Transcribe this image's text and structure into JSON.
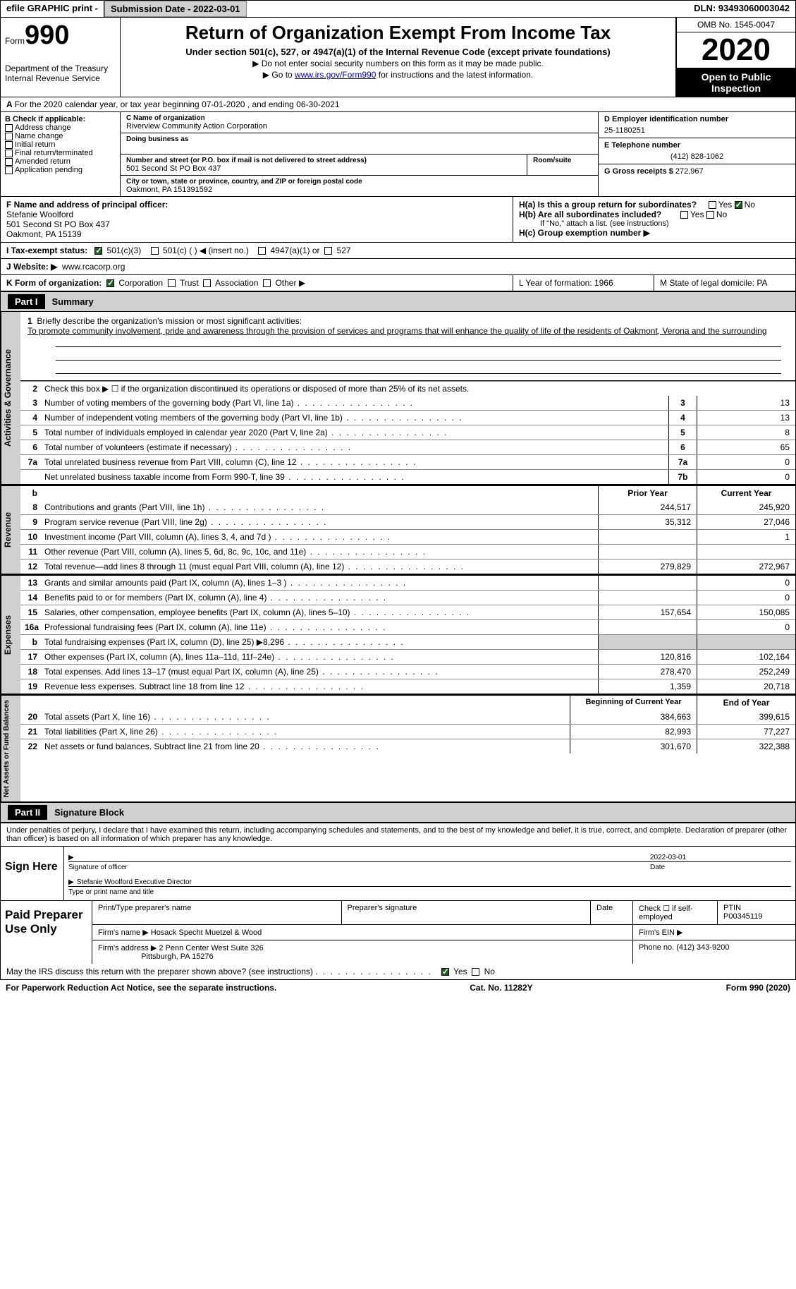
{
  "topbar": {
    "efile": "efile GRAPHIC print -",
    "submission": "Submission Date - 2022-03-01",
    "dln": "DLN: 93493060003042"
  },
  "header": {
    "form_prefix": "Form",
    "form_num": "990",
    "dept": "Department of the Treasury",
    "irs": "Internal Revenue Service",
    "title": "Return of Organization Exempt From Income Tax",
    "subtitle": "Under section 501(c), 527, or 4947(a)(1) of the Internal Revenue Code (except private foundations)",
    "note1": "▶ Do not enter social security numbers on this form as it may be made public.",
    "note2_pre": "▶ Go to ",
    "note2_link": "www.irs.gov/Form990",
    "note2_post": " for instructions and the latest information.",
    "omb": "OMB No. 1545-0047",
    "year": "2020",
    "inspect": "Open to Public Inspection"
  },
  "row_a": "For the 2020 calendar year, or tax year beginning 07-01-2020    , and ending 06-30-2021",
  "section_b": {
    "hdr": "B Check if applicable:",
    "items": [
      "Address change",
      "Name change",
      "Initial return",
      "Final return/terminated",
      "Amended return",
      "Application pending"
    ]
  },
  "section_c": {
    "name_lbl": "C Name of organization",
    "name": "Riverview Community Action Corporation",
    "dba_lbl": "Doing business as",
    "addr_lbl": "Number and street (or P.O. box if mail is not delivered to street address)",
    "room_lbl": "Room/suite",
    "addr": "501 Second St PO Box 437",
    "city_lbl": "City or town, state or province, country, and ZIP or foreign postal code",
    "city": "Oakmont, PA  151391592"
  },
  "section_de": {
    "ein_lbl": "D Employer identification number",
    "ein": "25-1180251",
    "tel_lbl": "E Telephone number",
    "tel": "(412) 828-1062",
    "gross_lbl": "G Gross receipts $ ",
    "gross": "272,967"
  },
  "section_f": {
    "lbl": "F Name and address of principal officer:",
    "name": "Stefanie Woolford",
    "addr1": "501 Second St PO Box 437",
    "addr2": "Oakmont, PA  15139"
  },
  "section_h": {
    "ha": "H(a)  Is this a group return for subordinates?",
    "hb": "H(b)  Are all subordinates included?",
    "hb_note": "If \"No,\" attach a list. (see instructions)",
    "hc": "H(c)  Group exemption number ▶"
  },
  "row_i": {
    "lbl": "I     Tax-exempt status:",
    "o1": "501(c)(3)",
    "o2": "501(c) (  ) ◀ (insert no.)",
    "o3": "4947(a)(1) or",
    "o4": "527"
  },
  "row_j": {
    "lbl": "J    Website: ▶",
    "val": "www.rcacorp.org"
  },
  "row_k": {
    "lbl": "K Form of organization:",
    "o1": "Corporation",
    "o2": "Trust",
    "o3": "Association",
    "o4": "Other ▶",
    "l": "L Year of formation: 1966",
    "m": "M State of legal domicile: PA"
  },
  "part1": {
    "hdr": "Part I",
    "title": "Summary",
    "q1_lbl": "1",
    "q1": "Briefly describe the organization's mission or most significant activities:",
    "q1_text": "To promote community involvement, pride and awareness through the provision of services and programs that will enhance the quality of life of the residents of Oakmont, Verona and the surrounding",
    "q2_lbl": "2",
    "q2": "Check this box ▶ ☐  if the organization discontinued its operations or disposed of more than 25% of its net assets.",
    "vert1": "Activities & Governance",
    "vert2": "Revenue",
    "vert3": "Expenses",
    "vert4": "Net Assets or Fund Balances",
    "prior_hdr": "Prior Year",
    "current_hdr": "Current Year",
    "begin_hdr": "Beginning of Current Year",
    "end_hdr": "End of Year",
    "rows_gov": [
      {
        "n": "3",
        "t": "Number of voting members of the governing body (Part VI, line 1a)",
        "b": "3",
        "v": "13"
      },
      {
        "n": "4",
        "t": "Number of independent voting members of the governing body (Part VI, line 1b)",
        "b": "4",
        "v": "13"
      },
      {
        "n": "5",
        "t": "Total number of individuals employed in calendar year 2020 (Part V, line 2a)",
        "b": "5",
        "v": "8"
      },
      {
        "n": "6",
        "t": "Total number of volunteers (estimate if necessary)",
        "b": "6",
        "v": "65"
      },
      {
        "n": "7a",
        "t": "Total unrelated business revenue from Part VIII, column (C), line 12",
        "b": "7a",
        "v": "0"
      },
      {
        "n": "",
        "t": "Net unrelated business taxable income from Form 990-T, line 39",
        "b": "7b",
        "v": "0"
      }
    ],
    "rows_rev": [
      {
        "n": "8",
        "t": "Contributions and grants (Part VIII, line 1h)",
        "p": "244,517",
        "c": "245,920"
      },
      {
        "n": "9",
        "t": "Program service revenue (Part VIII, line 2g)",
        "p": "35,312",
        "c": "27,046"
      },
      {
        "n": "10",
        "t": "Investment income (Part VIII, column (A), lines 3, 4, and 7d )",
        "p": "",
        "c": "1"
      },
      {
        "n": "11",
        "t": "Other revenue (Part VIII, column (A), lines 5, 6d, 8c, 9c, 10c, and 11e)",
        "p": "",
        "c": ""
      },
      {
        "n": "12",
        "t": "Total revenue—add lines 8 through 11 (must equal Part VIII, column (A), line 12)",
        "p": "279,829",
        "c": "272,967"
      }
    ],
    "rows_exp": [
      {
        "n": "13",
        "t": "Grants and similar amounts paid (Part IX, column (A), lines 1–3 )",
        "p": "",
        "c": "0"
      },
      {
        "n": "14",
        "t": "Benefits paid to or for members (Part IX, column (A), line 4)",
        "p": "",
        "c": "0"
      },
      {
        "n": "15",
        "t": "Salaries, other compensation, employee benefits (Part IX, column (A), lines 5–10)",
        "p": "157,654",
        "c": "150,085"
      },
      {
        "n": "16a",
        "t": "Professional fundraising fees (Part IX, column (A), line 11e)",
        "p": "",
        "c": "0"
      },
      {
        "n": "b",
        "t": "Total fundraising expenses (Part IX, column (D), line 25) ▶8,296",
        "p": "shade",
        "c": "shade"
      },
      {
        "n": "17",
        "t": "Other expenses (Part IX, column (A), lines 11a–11d, 11f–24e)",
        "p": "120,816",
        "c": "102,164"
      },
      {
        "n": "18",
        "t": "Total expenses. Add lines 13–17 (must equal Part IX, column (A), line 25)",
        "p": "278,470",
        "c": "252,249"
      },
      {
        "n": "19",
        "t": "Revenue less expenses. Subtract line 18 from line 12",
        "p": "1,359",
        "c": "20,718"
      }
    ],
    "rows_net": [
      {
        "n": "20",
        "t": "Total assets (Part X, line 16)",
        "p": "384,663",
        "c": "399,615"
      },
      {
        "n": "21",
        "t": "Total liabilities (Part X, line 26)",
        "p": "82,993",
        "c": "77,227"
      },
      {
        "n": "22",
        "t": "Net assets or fund balances. Subtract line 21 from line 20",
        "p": "301,670",
        "c": "322,388"
      }
    ]
  },
  "part2": {
    "hdr": "Part II",
    "title": "Signature Block",
    "penalty": "Under penalties of perjury, I declare that I have examined this return, including accompanying schedules and statements, and to the best of my knowledge and belief, it is true, correct, and complete. Declaration of preparer (other than officer) is based on all information of which preparer has any knowledge.",
    "sign_here": "Sign Here",
    "sig_officer": "Signature of officer",
    "sig_date": "2022-03-01",
    "date_lbl": "Date",
    "officer": "Stefanie Woolford  Executive Director",
    "officer_lbl": "Type or print name and title",
    "paid_prep": "Paid Preparer Use Only",
    "prep_name_lbl": "Print/Type preparer's name",
    "prep_sig_lbl": "Preparer's signature",
    "prep_date_lbl": "Date",
    "prep_check": "Check ☐ if self-employed",
    "ptin_lbl": "PTIN",
    "ptin": "P00345119",
    "firm_name_lbl": "Firm's name    ▶",
    "firm_name": "Hosack Specht Muetzel & Wood",
    "firm_ein_lbl": "Firm's EIN ▶",
    "firm_addr_lbl": "Firm's address ▶",
    "firm_addr1": "2 Penn Center West Suite 326",
    "firm_addr2": "Pittsburgh, PA  15276",
    "phone_lbl": "Phone no. ",
    "phone": "(412) 343-9200",
    "discuss": "May the IRS discuss this return with the preparer shown above? (see instructions)",
    "yes": "Yes",
    "no": "No"
  },
  "footer": {
    "left": "For Paperwork Reduction Act Notice, see the separate instructions.",
    "mid": "Cat. No. 11282Y",
    "right": "Form 990 (2020)"
  }
}
